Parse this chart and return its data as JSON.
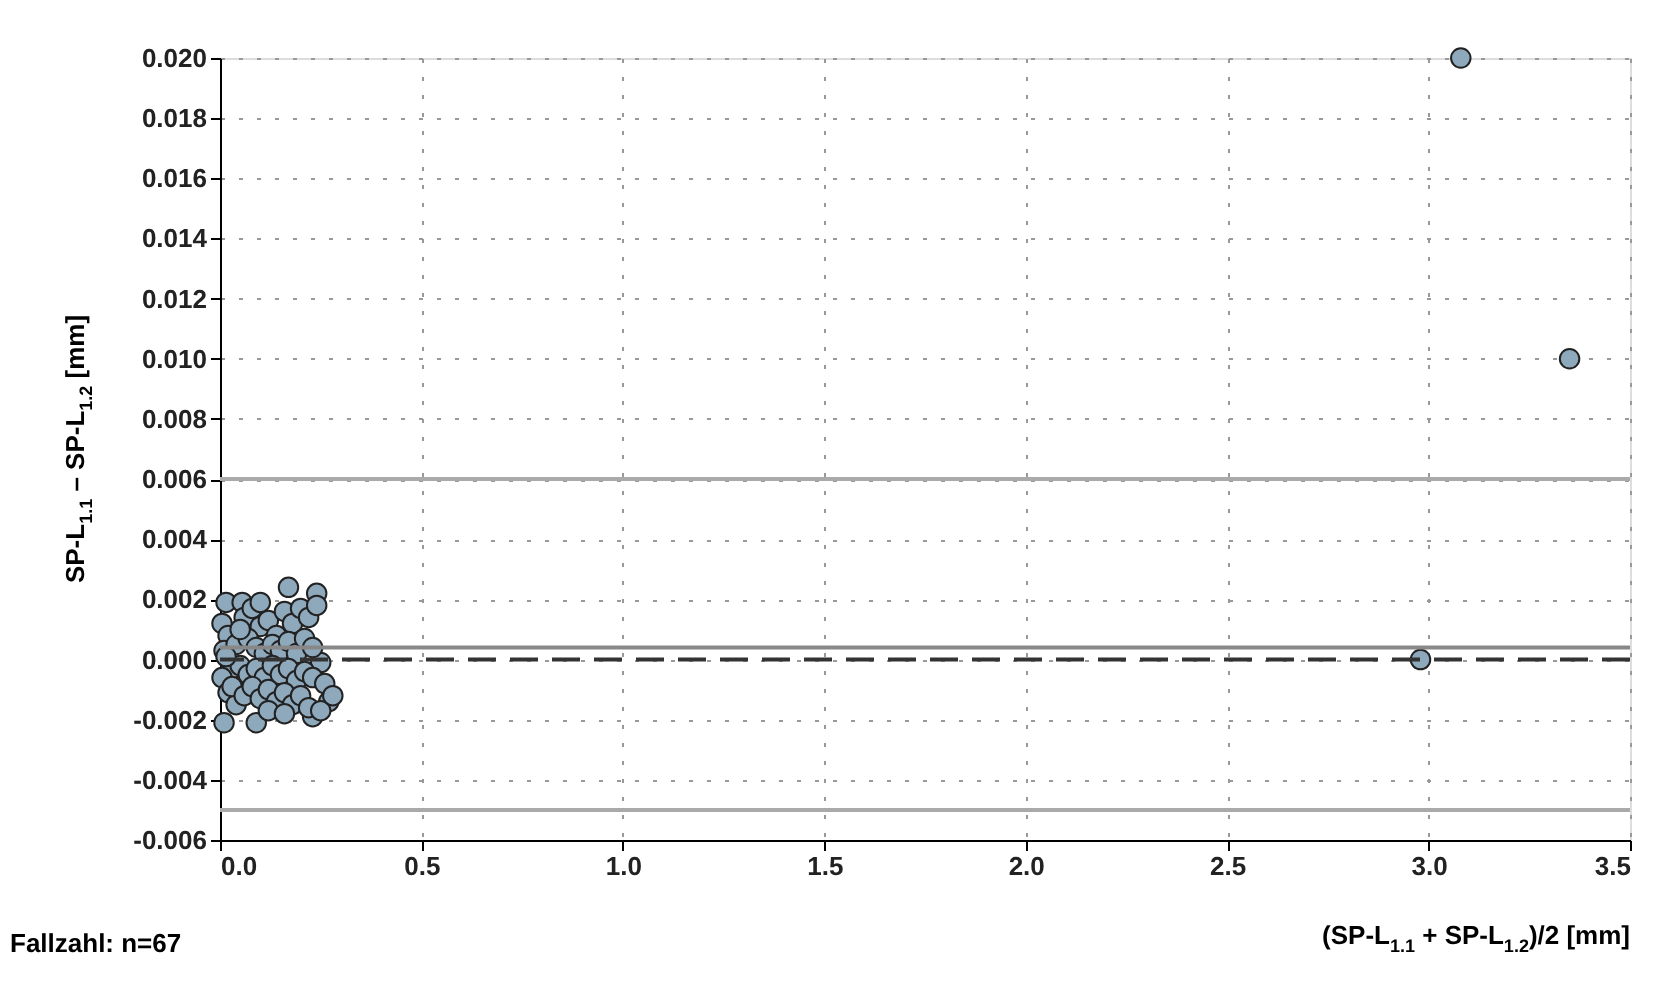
{
  "chart_data": {
    "type": "scatter",
    "xlabel": "(SP-L$_{1.1}$ + SP-L$_{1.2}$)/2 [mm]",
    "ylabel": "SP-L$_{1.1}$ – SP-L$_{1.2}$ [mm]",
    "annotations": [
      "Fallzahl: n=67"
    ],
    "series": [
      {
        "color": "#8fa9bc",
        "x": [
          0.015,
          0.055,
          0.17,
          0.24,
          0.01,
          0.09,
          0.23,
          0.27,
          0.25,
          0.005,
          0.02,
          0.01,
          0.03,
          0.005,
          0.02,
          0.04,
          0.06,
          0.08,
          0.1,
          0.12,
          0.14,
          0.16,
          0.18,
          0.2,
          0.22,
          0.24,
          0.04,
          0.07,
          0.09,
          0.11,
          0.13,
          0.15,
          0.17,
          0.19,
          0.21,
          0.23,
          0.05,
          0.07,
          0.09,
          0.11,
          0.13,
          0.15,
          0.17,
          0.19,
          0.21,
          0.23,
          0.26,
          0.03,
          0.06,
          0.08,
          0.1,
          0.12,
          0.14,
          0.16,
          0.18,
          0.2,
          0.22,
          0.25,
          0.12,
          0.16,
          0.05,
          0.1,
          0.015,
          0.28,
          3.08,
          3.35,
          2.98
        ],
        "values": [
          0.0019,
          0.0019,
          0.0024,
          0.0022,
          -0.0021,
          -0.0021,
          -0.0019,
          -0.0014,
          -0.0001,
          0.0012,
          0.0008,
          0.0003,
          -0.0003,
          -0.0006,
          -0.0011,
          -0.0015,
          0.0014,
          0.0017,
          0.0011,
          0.0013,
          0.0008,
          0.0016,
          0.0012,
          0.0017,
          0.0014,
          0.0018,
          0.0005,
          0.0007,
          0.0004,
          0.0002,
          0.0005,
          0.0003,
          0.0006,
          0.0002,
          0.0007,
          0.0004,
          -0.0002,
          -0.0005,
          -0.0003,
          -0.0006,
          -0.0002,
          -0.0005,
          -0.0003,
          -0.0007,
          -0.0004,
          -0.0006,
          -0.0008,
          -0.0009,
          -0.0012,
          -0.0009,
          -0.0013,
          -0.001,
          -0.0014,
          -0.0011,
          -0.0015,
          -0.0012,
          -0.0016,
          -0.0017,
          -0.0017,
          -0.0018,
          0.001,
          0.0019,
          0.0001,
          -0.0012,
          0.02,
          0.01,
          0.0
        ]
      }
    ],
    "marker": "circle",
    "xlim": [
      0,
      3.5
    ],
    "xticks": [
      {
        "value": 0,
        "label": "0.0"
      },
      {
        "value": 0.5,
        "label": "0.5"
      },
      {
        "value": 1,
        "label": "1.0"
      },
      {
        "value": 1.5,
        "label": "1.5"
      },
      {
        "value": 2,
        "label": "2.0"
      },
      {
        "value": 2.5,
        "label": "2.5"
      },
      {
        "value": 3,
        "label": "3.0"
      },
      {
        "value": 3.5,
        "label": "3.5"
      }
    ],
    "ylim": [
      -0.006,
      0.02
    ],
    "yticks": [
      {
        "value": -0.006,
        "label": "-0.006"
      },
      {
        "value": -0.004,
        "label": "-0.004"
      },
      {
        "value": -0.002,
        "label": "-0.002"
      },
      {
        "value": 0,
        "label": "0.000"
      },
      {
        "value": 0.002,
        "label": "0.002"
      },
      {
        "value": 0.004,
        "label": "0.004"
      },
      {
        "value": 0.006,
        "label": "0.006"
      },
      {
        "value": 0.008,
        "label": "0.008"
      },
      {
        "value": 0.01,
        "label": "0.010"
      },
      {
        "value": 0.012,
        "label": "0.012"
      },
      {
        "value": 0.014,
        "label": "0.014"
      },
      {
        "value": 0.016,
        "label": "0.016"
      },
      {
        "value": 0.018,
        "label": "0.018"
      },
      {
        "value": 0.02,
        "label": "0.020"
      }
    ],
    "grid": true,
    "ref_lines": [
      {
        "axis": "y",
        "value": 0.006,
        "color": "#aaaaaa",
        "line_style": "solid"
      },
      {
        "axis": "y",
        "value": 0.0004,
        "color": "#888888",
        "line_style": "solid"
      },
      {
        "axis": "y",
        "value": 0,
        "color": "#333333",
        "line_style": "dashed"
      },
      {
        "axis": "y",
        "value": -0.005,
        "color": "#aaaaaa",
        "line_style": "solid"
      }
    ]
  }
}
